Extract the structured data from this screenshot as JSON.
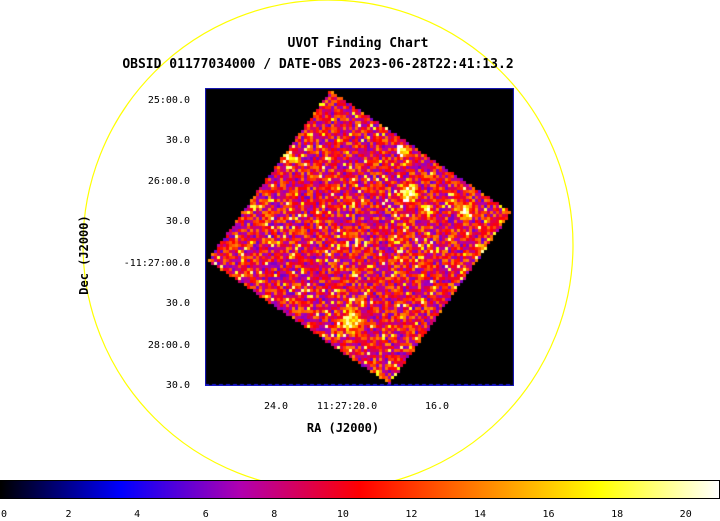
{
  "title": "UVOT Finding Chart",
  "subtitle": "OBSID 01177034000 / DATE-OBS 2023-06-28T22:41:13.2",
  "chart_data": {
    "type": "heatmap",
    "title": "UVOT Finding Chart",
    "subtitle": "OBSID 01177034000 / DATE-OBS 2023-06-28T22:41:13.2",
    "xlabel": "RA (J2000)",
    "ylabel": "Dec (J2000)",
    "x_tick_labels": [
      "24.0",
      "11:27:20.0",
      "16.0"
    ],
    "y_tick_labels": [
      "25:00.0",
      "30.0",
      "26:00.0",
      "30.0",
      "-11:27:00.0",
      "30.0",
      "28:00.0",
      "30.0"
    ],
    "colorbar": {
      "range": [
        0,
        21
      ],
      "tick_labels": [
        "0",
        "2",
        "4",
        "6",
        "8",
        "10",
        "12",
        "14",
        "16",
        "18",
        "20"
      ],
      "colormap": [
        "#000000",
        "#0000ff",
        "#b000b0",
        "#ff0000",
        "#ff8000",
        "#ffff00",
        "#ffffff"
      ]
    },
    "overlays": {
      "circle_color": "#ffff00",
      "frame_color": "#1818c8",
      "background": "#000000"
    },
    "bright_sources_note": ""
  }
}
